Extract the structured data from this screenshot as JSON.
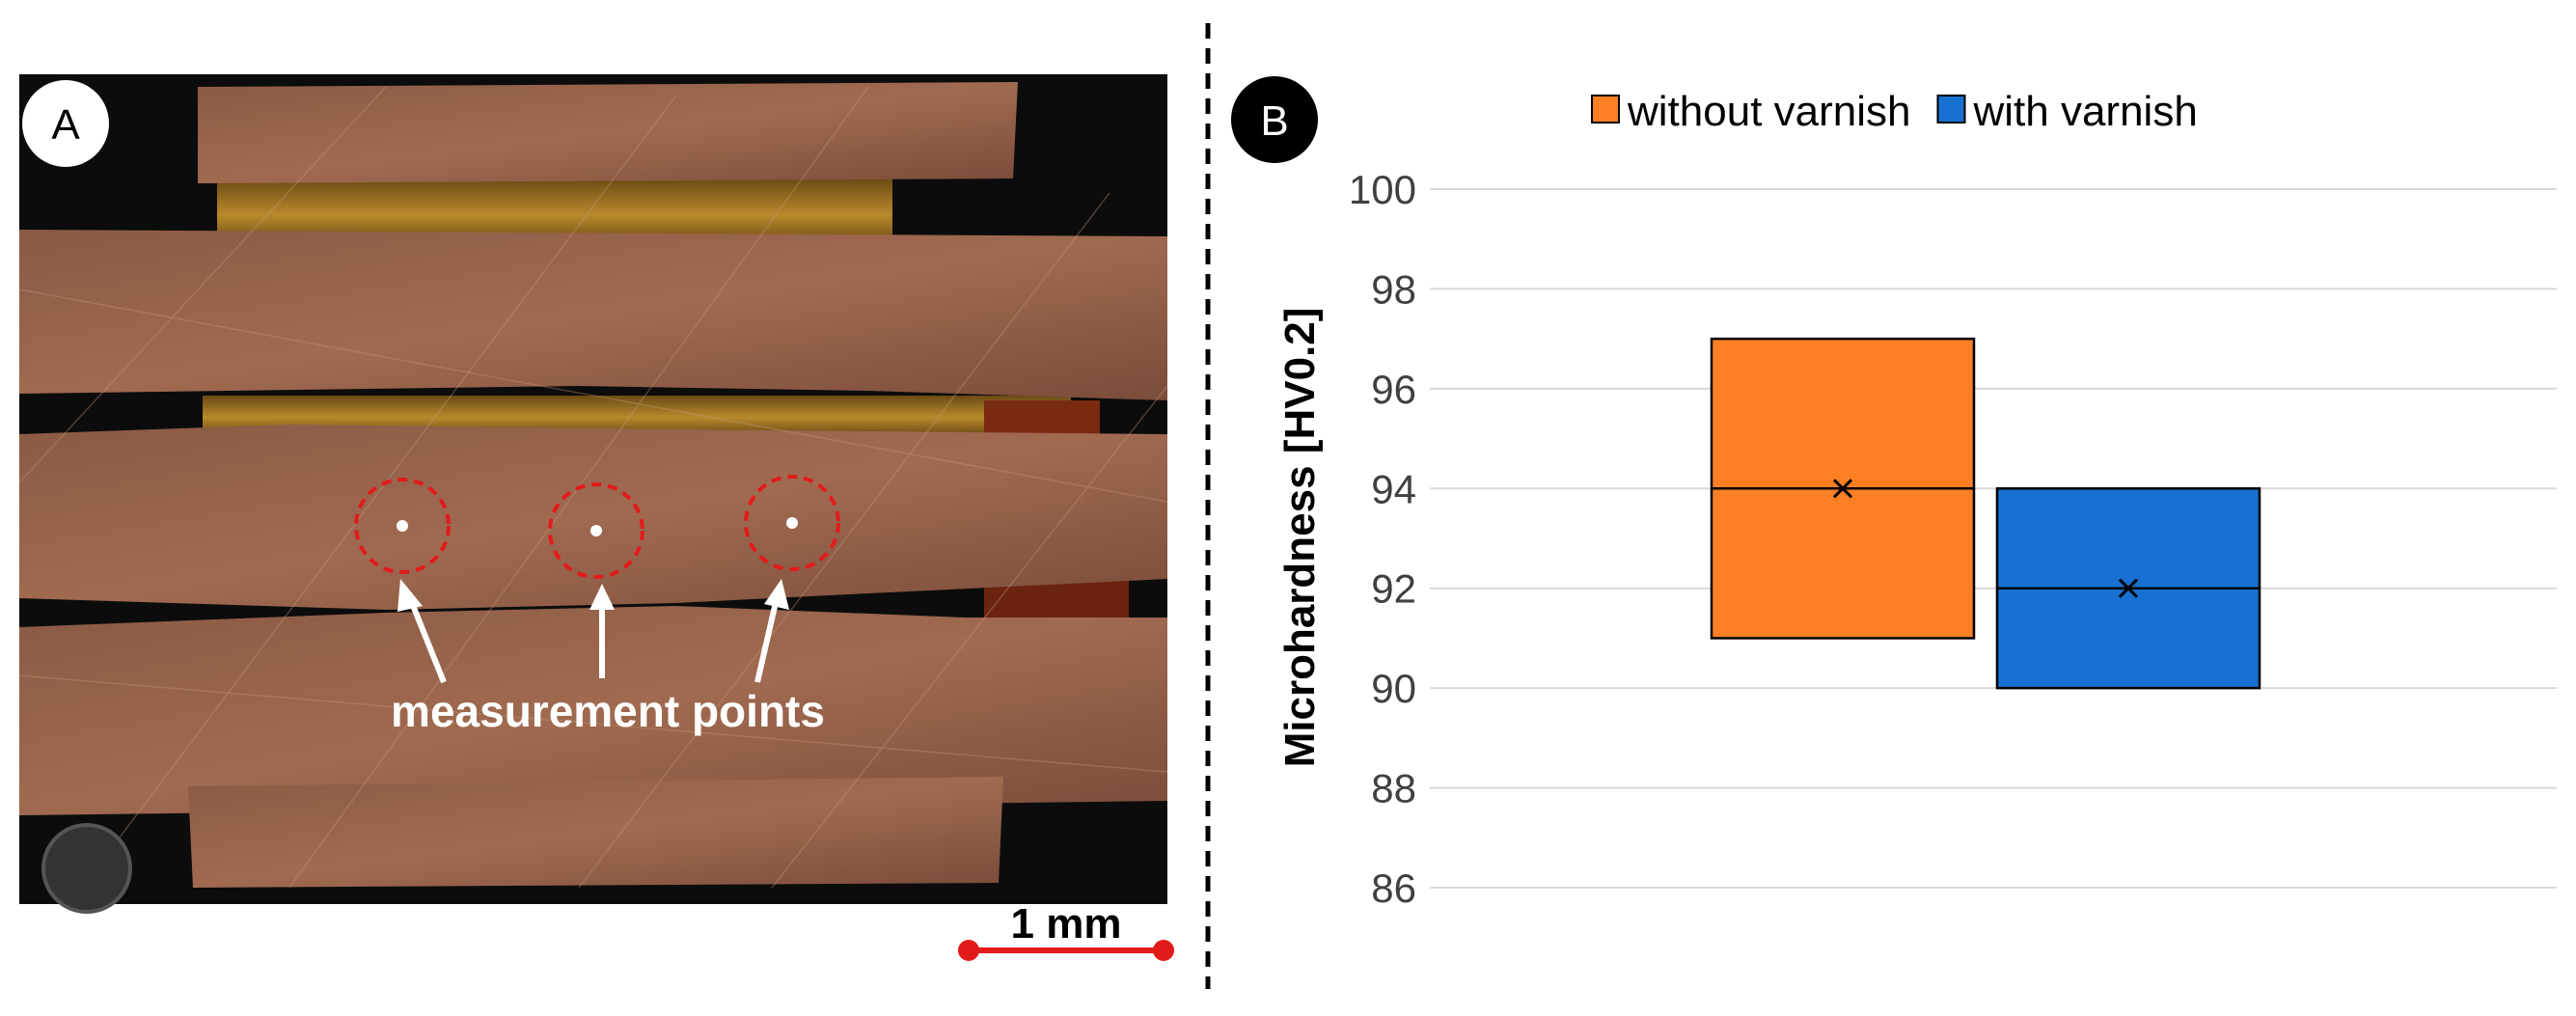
{
  "panel_a": {
    "label": "A",
    "annotation": "measurement points",
    "scale_bar": "1 mm"
  },
  "panel_b": {
    "label": "B"
  },
  "chart_data": {
    "type": "box",
    "ylabel": "Microhardness [HV0.2]",
    "ylim": [
      86,
      100
    ],
    "yticks": [
      86,
      88,
      90,
      92,
      94,
      96,
      98,
      100
    ],
    "grid": true,
    "legend": "top",
    "series": [
      {
        "name": "without varnish",
        "color": "#fd7f24",
        "q1": 91,
        "median": 94,
        "q3": 97,
        "mean": 94
      },
      {
        "name": "with varnish",
        "color": "#1871d1",
        "q1": 90,
        "median": 92,
        "q3": 94,
        "mean": 92
      }
    ]
  }
}
